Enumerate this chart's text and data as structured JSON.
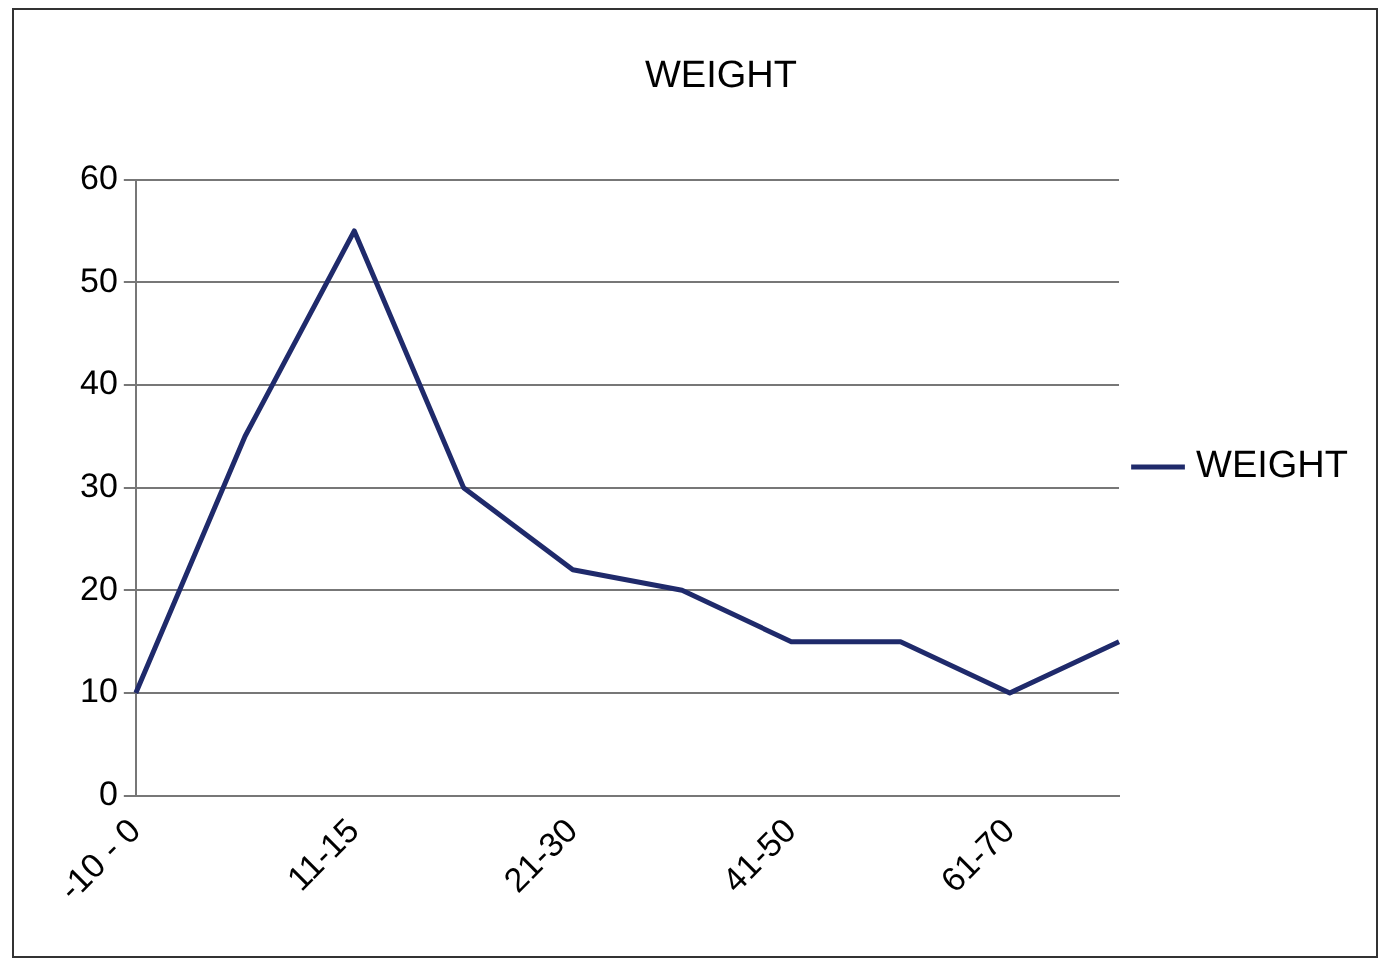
{
  "chart_data": {
    "type": "line",
    "title": "WEIGHT",
    "categories": [
      "-10 - 0",
      null,
      "11-15",
      null,
      "21-30",
      null,
      "41-50",
      null,
      "61-70",
      null
    ],
    "series": [
      {
        "name": "WEIGHT",
        "color": "#1f2a6b",
        "values": [
          10,
          35,
          55,
          30,
          22,
          20,
          15,
          15,
          10,
          15
        ]
      }
    ],
    "ylim": [
      0,
      60
    ],
    "yticks": [
      0,
      10,
      20,
      30,
      40,
      50,
      60
    ],
    "grid": "y",
    "legend": "right"
  }
}
